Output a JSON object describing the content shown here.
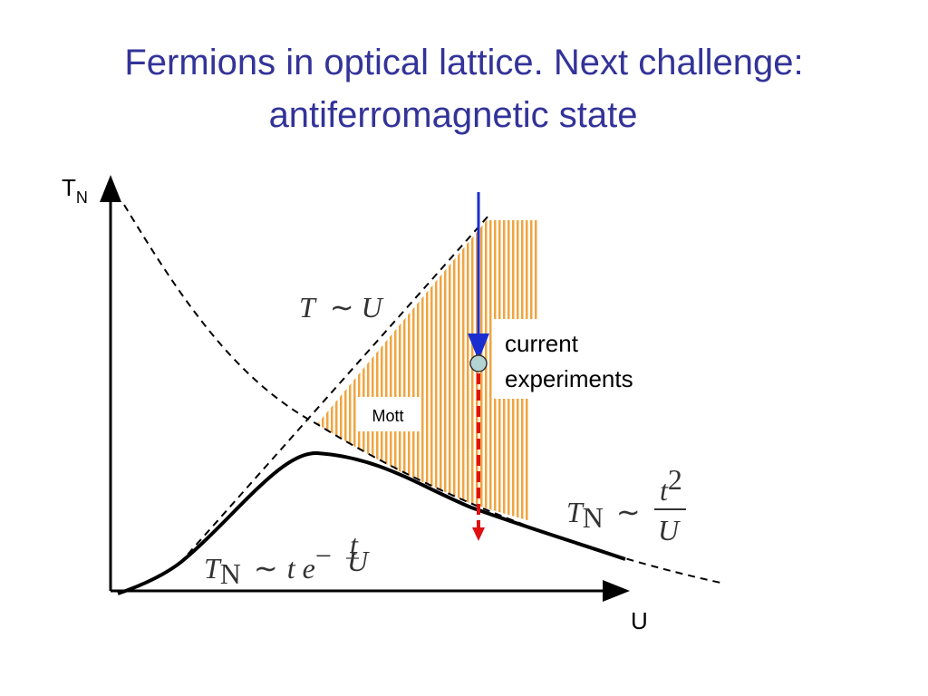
{
  "title": {
    "lines": [
      "Fermions in optical lattice. Next challenge:",
      "antiferromagnetic state"
    ]
  },
  "axes": {
    "y_label": {
      "text": "T",
      "subscript": "N"
    },
    "x_label": "U"
  },
  "annotations": {
    "mott": "Mott",
    "current_experiments": [
      "current",
      "experiments"
    ]
  },
  "formulas": {
    "linear": {
      "lhs": "T",
      "sim": "∼",
      "rhs": "U"
    },
    "strong": {
      "lhs": "T",
      "lhs_sub": "N",
      "sim": "∼",
      "numerator": "t",
      "numerator_sup": "2",
      "denominator": "U"
    },
    "weak": {
      "lhs": "T",
      "lhs_sub": "N",
      "sim": "∼",
      "base": "t e",
      "exponent_sign": "−",
      "exponent_numerator": "t",
      "exponent_denominator": "U"
    }
  }
}
